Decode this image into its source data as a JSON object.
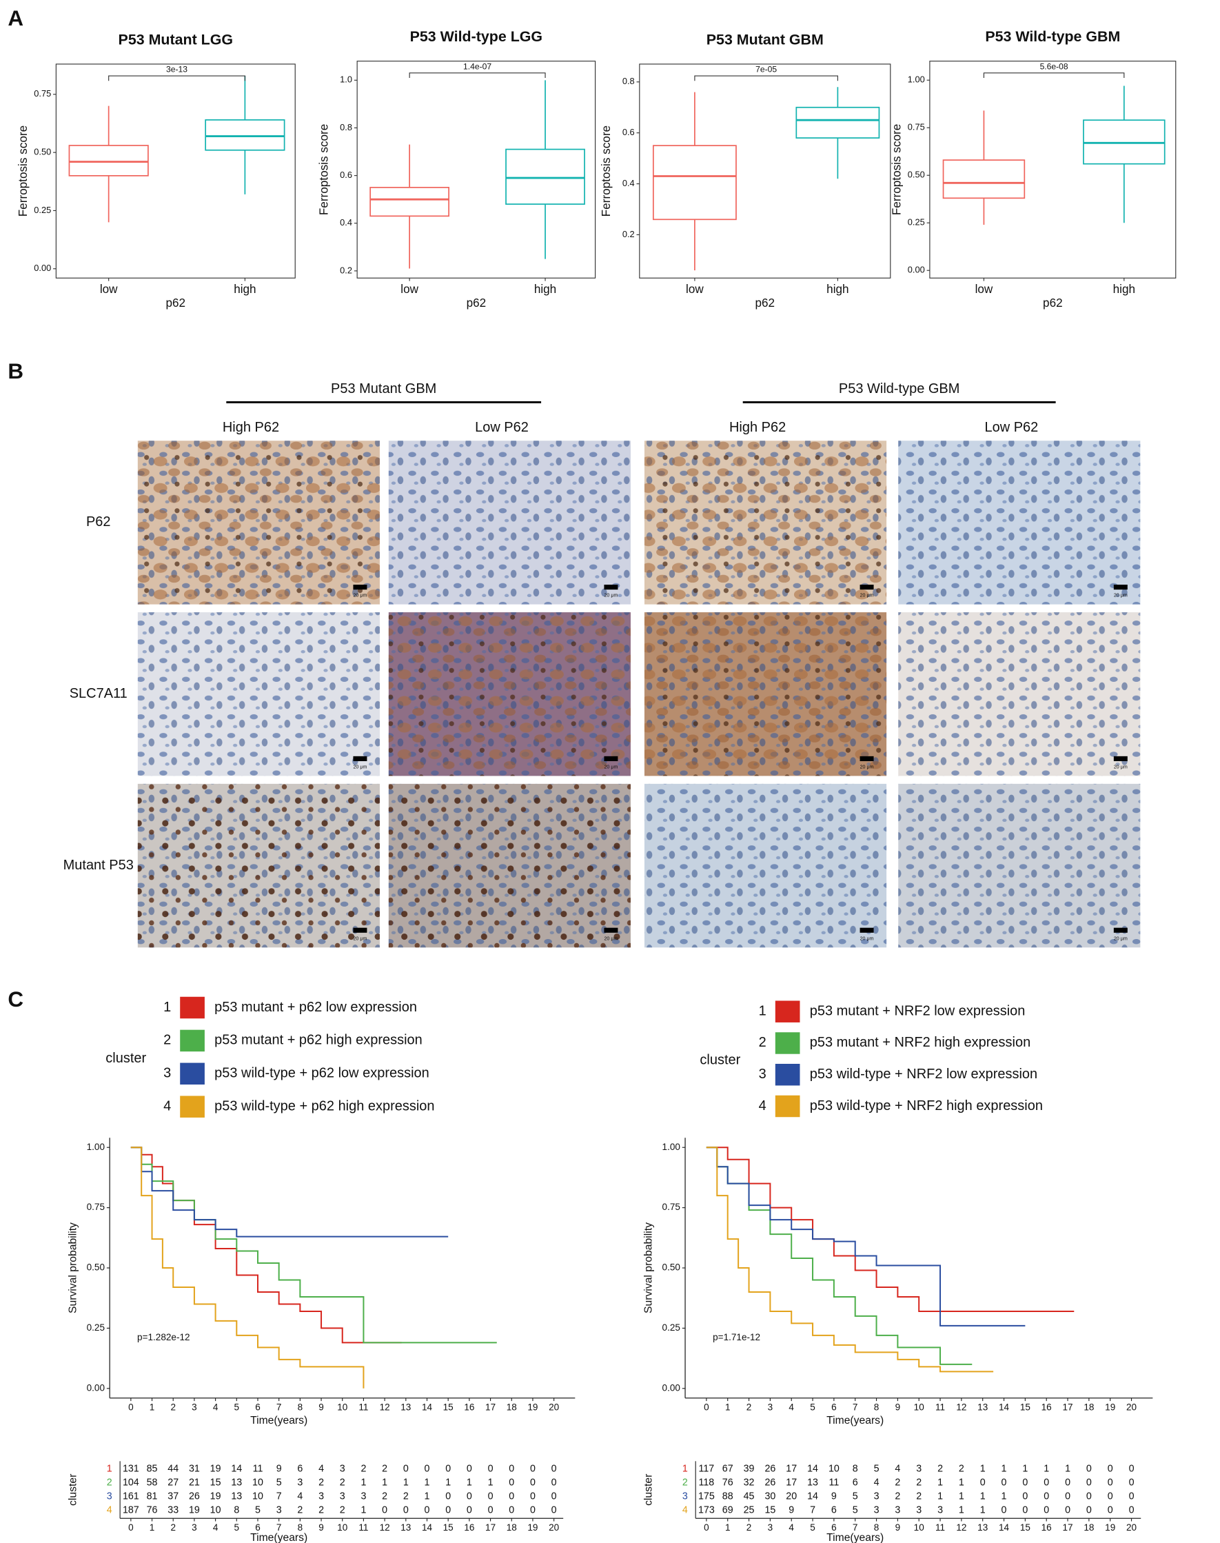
{
  "panel_labels": [
    "A",
    "B",
    "C"
  ],
  "chart_data": [
    {
      "type": "box",
      "title": "P53 Mutant LGG",
      "x_label": "p62",
      "y_label": "Ferroptosis score",
      "categories": [
        "low",
        "high"
      ],
      "annotation": "3e-13",
      "boxes": [
        {
          "color": "#f0655d",
          "whisker_low": 0.2,
          "q1": 0.4,
          "median": 0.46,
          "q3": 0.53,
          "whisker_high": 0.7
        },
        {
          "color": "#13b3b0",
          "whisker_low": 0.32,
          "q1": 0.51,
          "median": 0.57,
          "q3": 0.64,
          "whisker_high": 0.83
        }
      ],
      "ylim": [
        -0.04,
        0.88
      ],
      "yticks": [
        {
          "value": 0,
          "label": "0.00"
        },
        {
          "value": 0.25,
          "label": "0.25"
        },
        {
          "value": 0.5,
          "label": "0.50"
        },
        {
          "value": 0.75,
          "label": "0.75"
        }
      ]
    },
    {
      "type": "box",
      "title": "P53 Wild-type LGG",
      "x_label": "p62",
      "y_label": "Ferroptosis score",
      "categories": [
        "low",
        "high"
      ],
      "annotation": "1.4e-07",
      "boxes": [
        {
          "color": "#f0655d",
          "whisker_low": 0.21,
          "q1": 0.43,
          "median": 0.5,
          "q3": 0.55,
          "whisker_high": 0.73
        },
        {
          "color": "#13b3b0",
          "whisker_low": 0.25,
          "q1": 0.48,
          "median": 0.59,
          "q3": 0.71,
          "whisker_high": 1.0
        }
      ],
      "ylim": [
        0.17,
        1.08
      ],
      "yticks": [
        0.2,
        0.4,
        0.6,
        0.8,
        {
          "value": 1,
          "label": "1.0"
        }
      ]
    },
    {
      "type": "box",
      "title": "P53 Mutant GBM",
      "x_label": "p62",
      "y_label": "Ferroptosis score",
      "categories": [
        "low",
        "high"
      ],
      "annotation": "7e-05",
      "boxes": [
        {
          "color": "#f0655d",
          "whisker_low": 0.06,
          "q1": 0.26,
          "median": 0.43,
          "q3": 0.55,
          "whisker_high": 0.76
        },
        {
          "color": "#13b3b0",
          "whisker_low": 0.42,
          "q1": 0.58,
          "median": 0.65,
          "q3": 0.7,
          "whisker_high": 0.78
        }
      ],
      "ylim": [
        0.03,
        0.87
      ],
      "yticks": [
        0.2,
        0.4,
        0.6,
        0.8
      ]
    },
    {
      "type": "box",
      "title": "P53 Wild-type GBM",
      "x_label": "p62",
      "y_label": "Ferroptosis score",
      "categories": [
        "low",
        "high"
      ],
      "annotation": "5.6e-08",
      "boxes": [
        {
          "color": "#f0655d",
          "whisker_low": 0.24,
          "q1": 0.38,
          "median": 0.46,
          "q3": 0.58,
          "whisker_high": 0.84
        },
        {
          "color": "#13b3b0",
          "whisker_low": 0.25,
          "q1": 0.56,
          "median": 0.67,
          "q3": 0.79,
          "whisker_high": 0.97
        }
      ],
      "ylim": [
        -0.04,
        1.1
      ],
      "yticks": [
        {
          "value": 0,
          "label": "0.00"
        },
        {
          "value": 0.25,
          "label": "0.25"
        },
        {
          "value": 0.5,
          "label": "0.50"
        },
        {
          "value": 0.75,
          "label": "0.75"
        },
        {
          "value": 1,
          "label": "1.00"
        }
      ]
    },
    {
      "type": "step",
      "legend_title": "cluster",
      "x_label": "Time(years)",
      "y_label": "Survival probability",
      "p_value": "p=1.282e-12",
      "xlim": [
        -1,
        21
      ],
      "xticks": [
        0,
        1,
        2,
        3,
        4,
        5,
        6,
        7,
        8,
        9,
        10,
        11,
        12,
        13,
        14,
        15,
        16,
        17,
        18,
        19,
        20
      ],
      "ylim": [
        -0.04,
        1.04
      ],
      "yticks": [
        {
          "value": 0,
          "label": "0.00"
        },
        {
          "value": 0.25,
          "label": "0.25"
        },
        {
          "value": 0.5,
          "label": "0.50"
        },
        {
          "value": 0.75,
          "label": "0.75"
        },
        {
          "value": 1,
          "label": "1.00"
        }
      ],
      "series": [
        {
          "key": "1",
          "name": "p53 mutant + p62 low expression",
          "color": "#d7261e",
          "x": [
            0,
            0.5,
            1,
            1.5,
            2,
            3,
            4,
            5,
            6,
            7,
            8,
            9,
            10,
            11,
            12.8
          ],
          "values": [
            1,
            0.97,
            0.92,
            0.85,
            0.78,
            0.68,
            0.58,
            0.47,
            0.4,
            0.35,
            0.32,
            0.25,
            0.19,
            0.19,
            0.19
          ]
        },
        {
          "key": "2",
          "name": "p53 mutant + p62 high expression",
          "color": "#4daf4a",
          "x": [
            0,
            0.5,
            1,
            2,
            3,
            4,
            5,
            6,
            7,
            8,
            10,
            11,
            17.3
          ],
          "values": [
            1,
            0.93,
            0.86,
            0.78,
            0.7,
            0.62,
            0.57,
            0.52,
            0.45,
            0.38,
            0.38,
            0.19,
            0.19
          ]
        },
        {
          "key": "3",
          "name": "p53 wild-type + p62 low expression",
          "color": "#2a4da0",
          "x": [
            0,
            0.5,
            1,
            2,
            3,
            4,
            5,
            6,
            15
          ],
          "values": [
            1,
            0.9,
            0.82,
            0.74,
            0.7,
            0.66,
            0.63,
            0.63,
            0.63
          ]
        },
        {
          "key": "4",
          "name": "p53 wild-type + p62 high expression",
          "color": "#e3a31c",
          "x": [
            0,
            0.5,
            1,
            1.5,
            2,
            3,
            4,
            5,
            6,
            7,
            8,
            11
          ],
          "values": [
            1,
            0.8,
            0.62,
            0.5,
            0.42,
            0.35,
            0.28,
            0.22,
            0.17,
            0.12,
            0.09,
            0
          ]
        }
      ],
      "risk_table": {
        "title": "cluster",
        "counts": [
          [
            131,
            85,
            44,
            31,
            19,
            14,
            11,
            9,
            6,
            4,
            3,
            2,
            2,
            0,
            0,
            0,
            0,
            0,
            0,
            0,
            0
          ],
          [
            104,
            58,
            27,
            21,
            15,
            13,
            10,
            5,
            3,
            2,
            2,
            1,
            1,
            1,
            1,
            1,
            1,
            1,
            0,
            0,
            0
          ],
          [
            161,
            81,
            37,
            26,
            19,
            13,
            10,
            7,
            4,
            3,
            3,
            3,
            2,
            2,
            1,
            0,
            0,
            0,
            0,
            0,
            0
          ],
          [
            187,
            76,
            33,
            19,
            10,
            8,
            5,
            3,
            2,
            2,
            2,
            1,
            0,
            0,
            0,
            0,
            0,
            0,
            0,
            0,
            0
          ]
        ]
      }
    },
    {
      "type": "step",
      "legend_title": "cluster",
      "x_label": "Time(years)",
      "y_label": "Survival probability",
      "p_value": "p=1.71e-12",
      "xlim": [
        -1,
        21
      ],
      "xticks": [
        0,
        1,
        2,
        3,
        4,
        5,
        6,
        7,
        8,
        9,
        10,
        11,
        12,
        13,
        14,
        15,
        16,
        17,
        18,
        19,
        20
      ],
      "ylim": [
        -0.04,
        1.04
      ],
      "yticks": [
        {
          "value": 0,
          "label": "0.00"
        },
        {
          "value": 0.25,
          "label": "0.25"
        },
        {
          "value": 0.5,
          "label": "0.50"
        },
        {
          "value": 0.75,
          "label": "0.75"
        },
        {
          "value": 1,
          "label": "1.00"
        }
      ],
      "series": [
        {
          "key": "1",
          "name": "p53 mutant + NRF2 low expression",
          "color": "#d7261e",
          "x": [
            0,
            1,
            2,
            3,
            4,
            5,
            6,
            7,
            8,
            9,
            10,
            11,
            13,
            17.3
          ],
          "values": [
            1,
            0.95,
            0.85,
            0.75,
            0.7,
            0.62,
            0.55,
            0.49,
            0.42,
            0.38,
            0.32,
            0.32,
            0.32,
            0.32
          ]
        },
        {
          "key": "2",
          "name": "p53 mutant + NRF2 high expression",
          "color": "#4daf4a",
          "x": [
            0,
            0.5,
            1,
            2,
            3,
            4,
            5,
            6,
            7,
            8,
            9,
            11,
            12.5
          ],
          "values": [
            1,
            0.92,
            0.85,
            0.74,
            0.64,
            0.54,
            0.45,
            0.38,
            0.3,
            0.22,
            0.17,
            0.1,
            0.1
          ]
        },
        {
          "key": "3",
          "name": "p53 wild-type + NRF2 low expression",
          "color": "#2a4da0",
          "x": [
            0,
            0.5,
            1,
            2,
            3,
            4,
            5,
            6,
            7,
            8,
            9,
            10,
            11,
            15
          ],
          "values": [
            1,
            0.92,
            0.85,
            0.76,
            0.7,
            0.66,
            0.62,
            0.61,
            0.55,
            0.51,
            0.51,
            0.51,
            0.26,
            0.26
          ]
        },
        {
          "key": "4",
          "name": "p53 wild-type + NRF2 high expression",
          "color": "#e3a31c",
          "x": [
            0,
            0.5,
            1,
            1.5,
            2,
            3,
            4,
            5,
            6,
            7,
            8,
            9,
            10,
            11,
            13.5
          ],
          "values": [
            1,
            0.8,
            0.62,
            0.5,
            0.4,
            0.32,
            0.27,
            0.22,
            0.18,
            0.15,
            0.15,
            0.12,
            0.09,
            0.07,
            0.07
          ]
        }
      ],
      "risk_table": {
        "title": "cluster",
        "counts": [
          [
            117,
            67,
            39,
            26,
            17,
            14,
            10,
            8,
            5,
            4,
            3,
            2,
            2,
            1,
            1,
            1,
            1,
            1,
            0,
            0,
            0
          ],
          [
            118,
            76,
            32,
            26,
            17,
            13,
            11,
            6,
            4,
            2,
            2,
            1,
            1,
            0,
            0,
            0,
            0,
            0,
            0,
            0,
            0
          ],
          [
            175,
            88,
            45,
            30,
            20,
            14,
            9,
            5,
            3,
            2,
            2,
            1,
            1,
            1,
            1,
            0,
            0,
            0,
            0,
            0,
            0
          ],
          [
            173,
            69,
            25,
            15,
            9,
            7,
            6,
            5,
            3,
            3,
            3,
            3,
            1,
            1,
            0,
            0,
            0,
            0,
            0,
            0,
            0
          ]
        ]
      }
    }
  ],
  "ihc": {
    "groups": [
      "P53 Mutant GBM",
      "P53 Wild-type GBM"
    ],
    "columns": [
      "High P62",
      "Low P62",
      "High P62",
      "Low P62"
    ],
    "rows": [
      "P62",
      "SLC7A11",
      "Mutant P53"
    ],
    "scale_bar": "20 μm"
  }
}
